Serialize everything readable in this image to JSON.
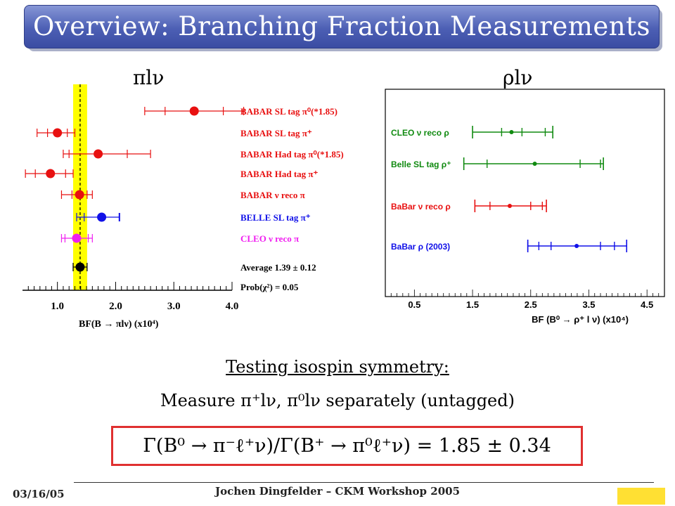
{
  "slide": {
    "title": "Overview: Branching Fraction Measurements",
    "pi_heading": "πlν",
    "rho_heading": "ρlν",
    "isospin_heading": "Testing isospin symmetry:",
    "measure_text": "Measure π⁺lν, π⁰lν separately (untagged)",
    "formula": "Γ(B⁰ → π⁻ℓ⁺ν)/Γ(B⁺ → π⁰ℓ⁺ν) = 1.85 ± 0.34",
    "footer_date": "03/16/05",
    "footer_center": "Jochen Dingfelder – CKM Workshop 2005"
  },
  "colors": {
    "red": "#e81010",
    "blue": "#1010e8",
    "magenta": "#f020f0",
    "black": "#000000",
    "green": "#108a10",
    "band": "#ffff00",
    "title_bar": "#4c5fb4",
    "box_border": "#e03030"
  },
  "chart_data": [
    {
      "type": "scatter",
      "xlabel": "BF(B → πlν) (x10⁴)",
      "xlim": [
        0.4,
        4.0
      ],
      "xticks": [
        "1.0",
        "2.0",
        "3.0",
        "4.0"
      ],
      "average_band": [
        1.27,
        1.51
      ],
      "average_line": 1.39,
      "series": [
        {
          "label": "BABAR SL tag π⁰(*1.85)",
          "color": "#e81010",
          "value": 3.35,
          "inner": [
            2.85,
            3.85
          ],
          "outer": [
            2.5,
            4.2
          ]
        },
        {
          "label": "BABAR SL tag π⁺",
          "color": "#e81010",
          "value": 1.0,
          "inner": [
            0.83,
            1.17
          ],
          "outer": [
            0.65,
            1.3
          ]
        },
        {
          "label": "BABAR Had tag π⁰(*1.85)",
          "color": "#e81010",
          "value": 1.7,
          "inner": [
            1.2,
            2.2
          ],
          "outer": [
            1.1,
            2.6
          ]
        },
        {
          "label": "BABAR Had tag π⁺",
          "color": "#e81010",
          "value": 0.88,
          "inner": [
            0.62,
            1.14
          ],
          "outer": [
            0.45,
            1.27
          ]
        },
        {
          "label": "BABAR ν reco π",
          "color": "#e81010",
          "value": 1.38,
          "inner": [
            1.25,
            1.51
          ],
          "outer": [
            1.07,
            1.6
          ]
        },
        {
          "label": "BELLE SL tag π⁺",
          "color": "#1010e8",
          "value": 1.76,
          "inner": [
            1.46,
            2.06
          ],
          "outer": [
            1.33,
            2.07
          ]
        },
        {
          "label": "CLEO ν reco π",
          "color": "#f020f0",
          "value": 1.33,
          "inner": [
            1.13,
            1.53
          ],
          "outer": [
            1.07,
            1.6
          ]
        },
        {
          "label": "Average 1.39 ± 0.12",
          "color": "#000000",
          "value": 1.39,
          "inner": [
            1.27,
            1.51
          ],
          "outer": [
            1.27,
            1.51
          ]
        }
      ],
      "probability_label": "Prob(χ²) = 0.05"
    },
    {
      "type": "scatter",
      "xlabel": "BF (B⁰ → ρ⁺ l ν)  (x10⁴)",
      "xlim": [
        0,
        4.8
      ],
      "xticks": [
        "0.5",
        "1.5",
        "2.5",
        "3.5",
        "4.5"
      ],
      "series": [
        {
          "label": "CLEO ν reco ρ",
          "color": "#108a10",
          "value": 2.17,
          "inner": [
            1.75,
            2.55
          ],
          "outer": [
            1.5,
            2.88
          ],
          "ticks_at": [
            2.0,
            2.35,
            2.75
          ]
        },
        {
          "label": "Belle  SL tag ρ⁺",
          "color": "#108a10",
          "value": 2.57,
          "inner": [
            1.7,
            3.35
          ],
          "outer": [
            1.35,
            3.75
          ],
          "ticks_at": [
            1.75,
            3.35,
            3.7
          ]
        },
        {
          "label": "BaBar ν reco ρ",
          "color": "#e81010",
          "value": 2.14,
          "inner": [
            1.76,
            2.52
          ],
          "outer": [
            1.54,
            2.77
          ],
          "ticks_at": [
            1.8,
            2.5,
            2.7
          ]
        },
        {
          "label": "BaBar ρ (2003)",
          "color": "#1010e8",
          "value": 3.29,
          "inner": [
            2.63,
            3.95
          ],
          "outer": [
            2.45,
            4.15
          ],
          "ticks_at": [
            2.45,
            2.64,
            2.85,
            3.7,
            3.94,
            4.15
          ]
        }
      ]
    }
  ]
}
